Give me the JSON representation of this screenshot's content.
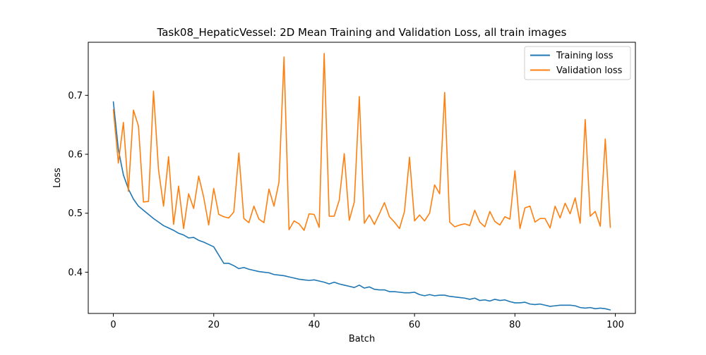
{
  "chart_data": {
    "type": "line",
    "title": "Task08_HepaticVessel: 2D Mean Training and Validation Loss, all train images",
    "xlabel": "Batch",
    "ylabel": "Loss",
    "xlim": [
      -5,
      104
    ],
    "ylim": [
      0.33,
      0.79
    ],
    "xticks": [
      0,
      20,
      40,
      60,
      80,
      100
    ],
    "yticks": [
      0.4,
      0.5,
      0.6,
      0.7
    ],
    "xtick_labels": [
      "0",
      "20",
      "40",
      "60",
      "80",
      "100"
    ],
    "ytick_labels": [
      "0.4",
      "0.5",
      "0.6",
      "0.7"
    ],
    "grid": false,
    "legend_position": "top-right",
    "series": [
      {
        "name": "Training loss",
        "color": "#1f77b4",
        "x": [
          0,
          1,
          2,
          3,
          4,
          5,
          6,
          7,
          8,
          9,
          10,
          11,
          12,
          13,
          14,
          15,
          16,
          17,
          18,
          19,
          20,
          21,
          22,
          23,
          24,
          25,
          26,
          27,
          28,
          29,
          30,
          31,
          32,
          33,
          34,
          35,
          36,
          37,
          38,
          39,
          40,
          41,
          42,
          43,
          44,
          45,
          46,
          47,
          48,
          49,
          50,
          51,
          52,
          53,
          54,
          55,
          56,
          57,
          58,
          59,
          60,
          61,
          62,
          63,
          64,
          65,
          66,
          67,
          68,
          69,
          70,
          71,
          72,
          73,
          74,
          75,
          76,
          77,
          78,
          79,
          80,
          81,
          82,
          83,
          84,
          85,
          86,
          87,
          88,
          89,
          90,
          91,
          92,
          93,
          94,
          95,
          96,
          97,
          98,
          99
        ],
        "y": [
          0.689,
          0.608,
          0.565,
          0.541,
          0.524,
          0.512,
          0.505,
          0.498,
          0.491,
          0.485,
          0.479,
          0.475,
          0.471,
          0.466,
          0.463,
          0.458,
          0.459,
          0.454,
          0.451,
          0.447,
          0.443,
          0.429,
          0.415,
          0.415,
          0.411,
          0.406,
          0.408,
          0.405,
          0.403,
          0.401,
          0.4,
          0.399,
          0.396,
          0.395,
          0.394,
          0.392,
          0.39,
          0.388,
          0.387,
          0.386,
          0.387,
          0.385,
          0.383,
          0.38,
          0.383,
          0.38,
          0.378,
          0.376,
          0.374,
          0.378,
          0.373,
          0.375,
          0.371,
          0.37,
          0.37,
          0.367,
          0.367,
          0.366,
          0.365,
          0.365,
          0.366,
          0.362,
          0.36,
          0.362,
          0.36,
          0.361,
          0.361,
          0.359,
          0.358,
          0.357,
          0.356,
          0.354,
          0.356,
          0.352,
          0.353,
          0.351,
          0.354,
          0.352,
          0.353,
          0.35,
          0.348,
          0.348,
          0.349,
          0.346,
          0.345,
          0.346,
          0.344,
          0.342,
          0.343,
          0.344,
          0.344,
          0.344,
          0.343,
          0.34,
          0.339,
          0.34,
          0.338,
          0.339,
          0.338,
          0.336
        ]
      },
      {
        "name": "Validation loss",
        "color": "#ff7f0e",
        "x": [
          0,
          1,
          2,
          3,
          4,
          5,
          6,
          7,
          8,
          9,
          10,
          11,
          12,
          13,
          14,
          15,
          16,
          17,
          18,
          19,
          20,
          21,
          22,
          23,
          24,
          25,
          26,
          27,
          28,
          29,
          30,
          31,
          32,
          33,
          34,
          35,
          36,
          37,
          38,
          39,
          40,
          41,
          42,
          43,
          44,
          45,
          46,
          47,
          48,
          49,
          50,
          51,
          52,
          53,
          54,
          55,
          56,
          57,
          58,
          59,
          60,
          61,
          62,
          63,
          64,
          65,
          66,
          67,
          68,
          69,
          70,
          71,
          72,
          73,
          74,
          75,
          76,
          77,
          78,
          79,
          80,
          81,
          82,
          83,
          84,
          85,
          86,
          87,
          88,
          89,
          90,
          91,
          92,
          93,
          94,
          95,
          96,
          97,
          98,
          99
        ],
        "y": [
          0.676,
          0.585,
          0.654,
          0.537,
          0.675,
          0.648,
          0.519,
          0.52,
          0.707,
          0.574,
          0.512,
          0.596,
          0.481,
          0.546,
          0.474,
          0.533,
          0.508,
          0.563,
          0.527,
          0.48,
          0.542,
          0.498,
          0.494,
          0.492,
          0.502,
          0.602,
          0.491,
          0.484,
          0.512,
          0.49,
          0.484,
          0.541,
          0.512,
          0.553,
          0.765,
          0.472,
          0.487,
          0.482,
          0.471,
          0.499,
          0.498,
          0.476,
          0.771,
          0.495,
          0.495,
          0.522,
          0.601,
          0.488,
          0.519,
          0.698,
          0.483,
          0.497,
          0.481,
          0.499,
          0.518,
          0.494,
          0.485,
          0.474,
          0.503,
          0.595,
          0.487,
          0.497,
          0.487,
          0.5,
          0.548,
          0.533,
          0.705,
          0.485,
          0.477,
          0.48,
          0.482,
          0.479,
          0.505,
          0.485,
          0.477,
          0.503,
          0.486,
          0.48,
          0.494,
          0.49,
          0.572,
          0.474,
          0.509,
          0.512,
          0.485,
          0.491,
          0.491,
          0.475,
          0.512,
          0.492,
          0.517,
          0.499,
          0.526,
          0.483,
          0.659,
          0.495,
          0.503,
          0.478,
          0.626,
          0.476
        ]
      }
    ]
  }
}
